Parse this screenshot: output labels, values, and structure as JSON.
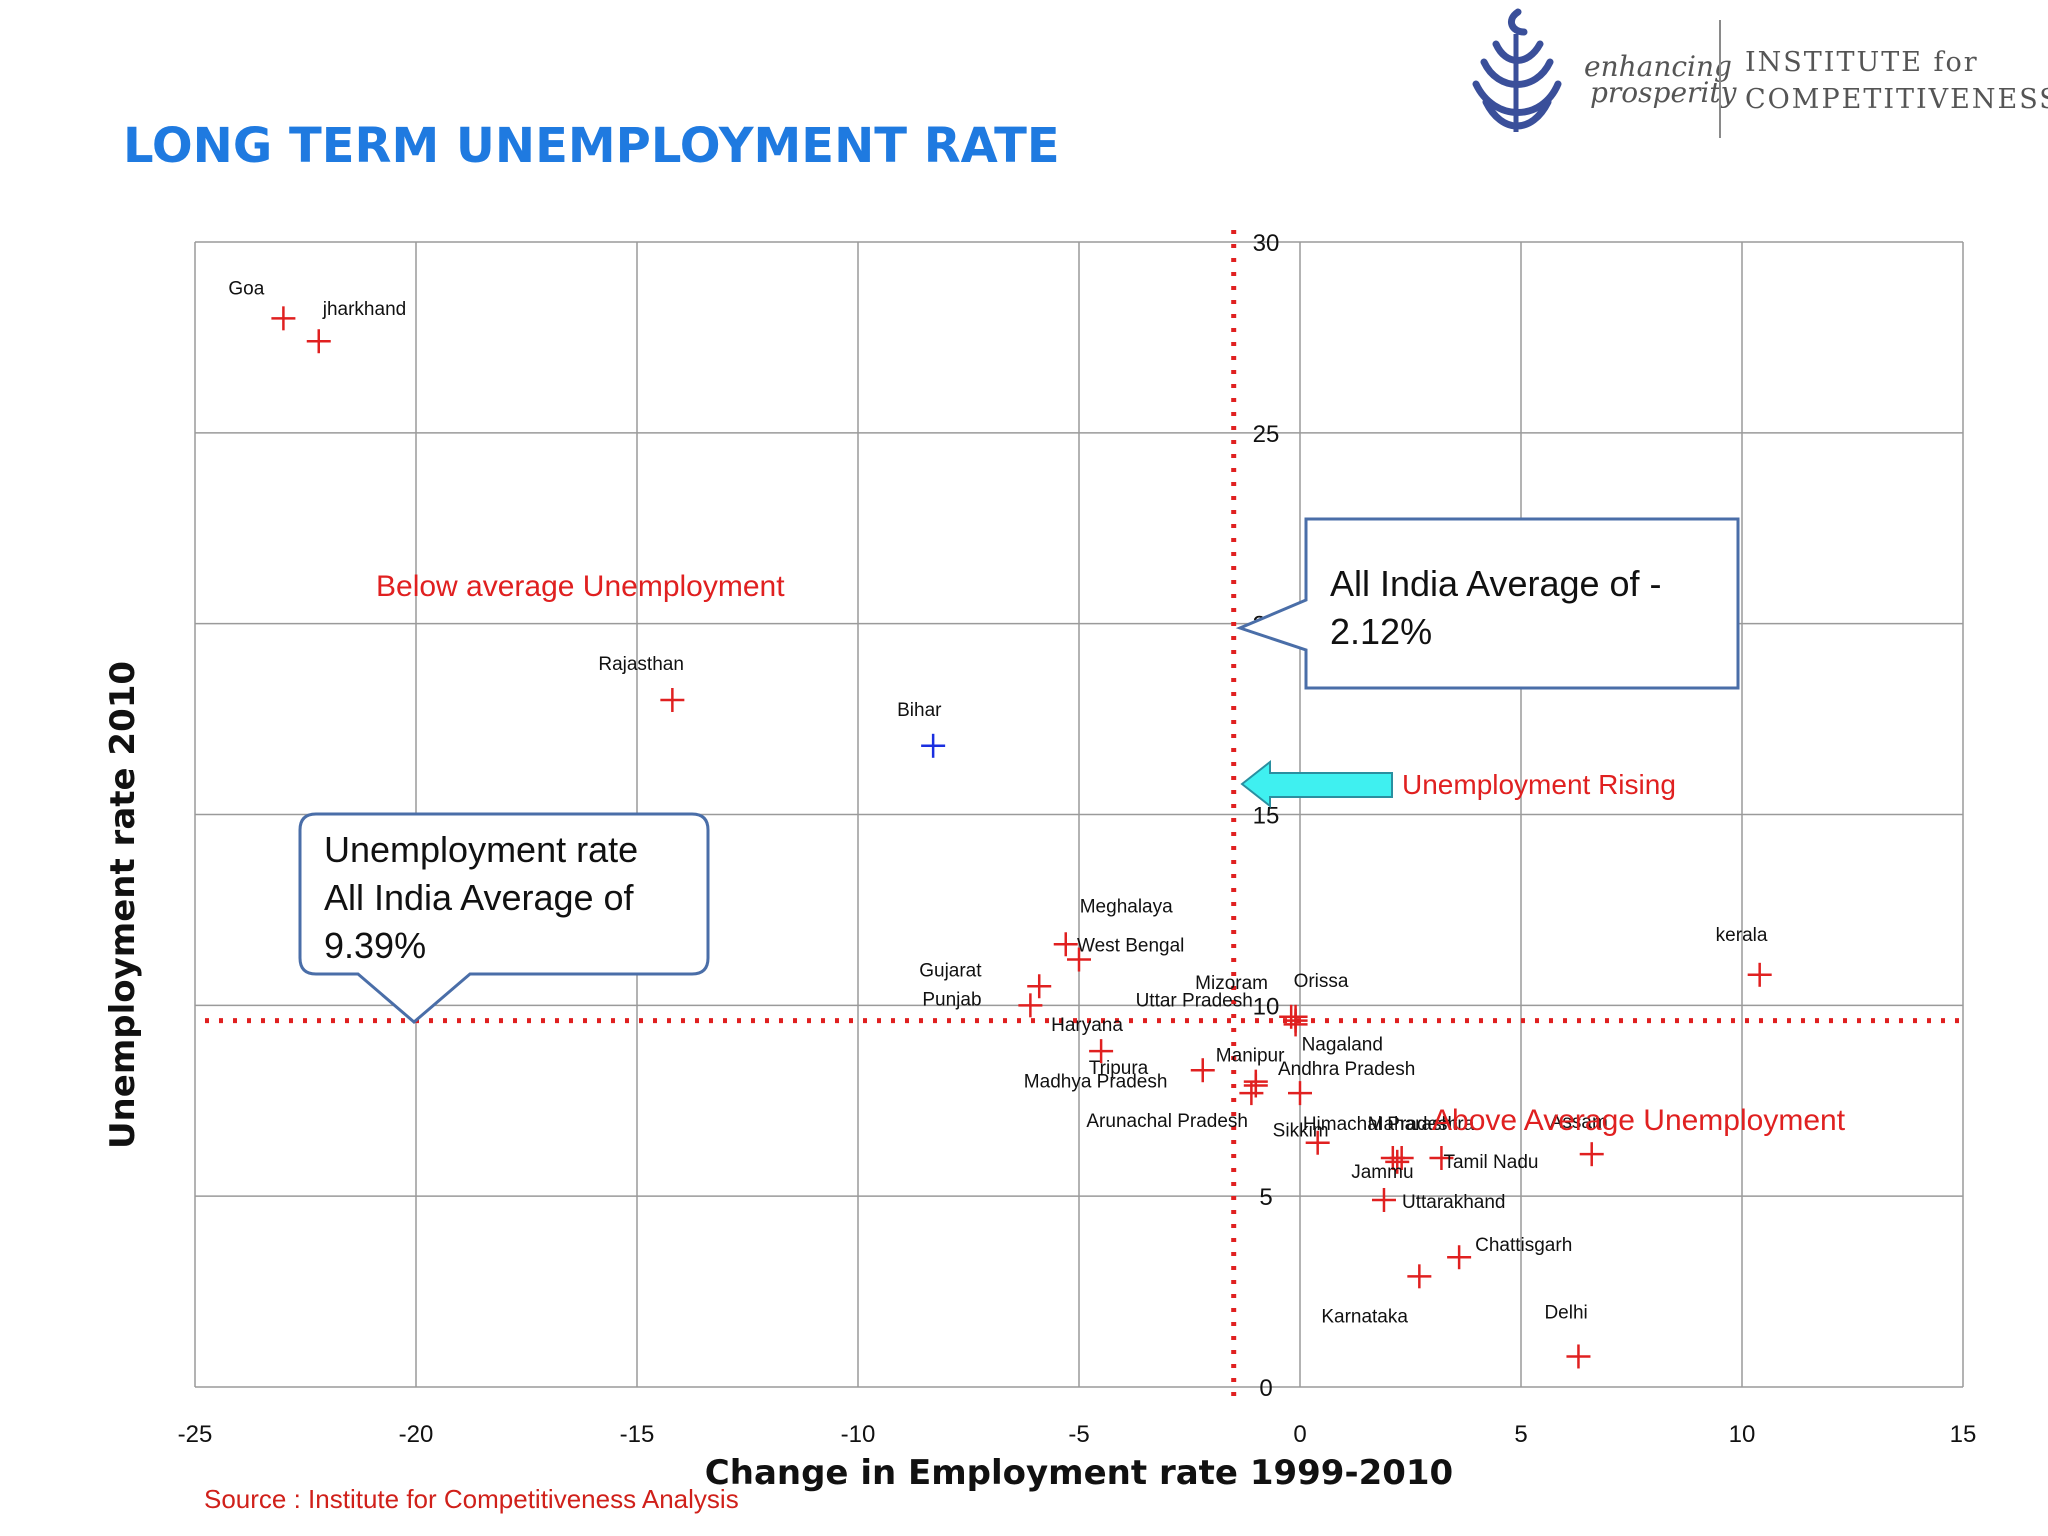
{
  "slide": {
    "title": "LONG TERM UNEMPLOYMENT RATE",
    "source": "Source : Institute for Competitiveness Analysis"
  },
  "logo": {
    "tagline_line1": "enhancing",
    "tagline_line2": "prosperity",
    "name_line1": "INSTITUTE for",
    "name_line2": "COMPETITIVENESS",
    "emblem_icon": "leaf-emblem-icon",
    "emblem_color": "#3a4f9a"
  },
  "annotations": {
    "below_average": "Below average Unemployment",
    "above_average": "Above Average Unemployment",
    "rising": "Unemployment Rising",
    "callout_change_line1": "All India Average of -",
    "callout_change_line2": "2.12%",
    "callout_unemp_line1": "Unemployment rate",
    "callout_unemp_line2": "All India Average of",
    "callout_unemp_line3": "9.39%",
    "arrow_icon": "left-arrow-icon",
    "arrow_color": "#3ff0f0",
    "annotation_color": "#e02020",
    "callout_border_color": "#4a6ea8"
  },
  "chart_data": {
    "type": "scatter",
    "xlabel": "Change in Employment rate 1999-2010",
    "ylabel": "Unemployment rate 2010",
    "xlim": [
      -25,
      15
    ],
    "ylim": [
      0,
      30
    ],
    "x_ticks": [
      -25,
      -20,
      -15,
      -10,
      -5,
      0,
      5,
      10,
      15
    ],
    "y_ticks": [
      0,
      5,
      10,
      15,
      20,
      25,
      30
    ],
    "x_tick_labels": [
      "-25",
      "-20",
      "-15",
      "-10",
      "-5",
      "0",
      "5",
      "10",
      "15"
    ],
    "y_tick_labels": [
      "0",
      "5",
      "10",
      "15",
      "20",
      "25",
      "30"
    ],
    "grid": true,
    "average_lines": {
      "x": -1.5,
      "y": 9.6
    },
    "marker": "plus",
    "colors": {
      "default": "#e02020",
      "highlight": "#1a2fe0",
      "axis_text": "#111111",
      "grid": "#9a9a9a",
      "average_line": "#e02020"
    },
    "points": [
      {
        "label": "Goa",
        "x": -23,
        "y": 28.0
      },
      {
        "label": "jharkhand",
        "x": -22.2,
        "y": 27.4
      },
      {
        "label": "Rajasthan",
        "x": -14.2,
        "y": 18.0
      },
      {
        "label": "Bihar",
        "x": -8.3,
        "y": 16.8,
        "highlight": true
      },
      {
        "label": "Meghalaya",
        "x": -5.3,
        "y": 11.6
      },
      {
        "label": "West Bengal",
        "x": -5.0,
        "y": 11.2
      },
      {
        "label": "Gujarat",
        "x": -5.9,
        "y": 10.5
      },
      {
        "label": "Punjab",
        "x": -6.1,
        "y": 10.0
      },
      {
        "label": "Haryana",
        "x": -4.5,
        "y": 8.8
      },
      {
        "label": "Tripura",
        "x": -2.2,
        "y": 8.3
      },
      {
        "label": "Madhya Pradesh",
        "x": -1.0,
        "y": 8.0
      },
      {
        "label": "Arunachal Pradesh",
        "x": -1.1,
        "y": 7.7
      },
      {
        "label": "Manipur",
        "x": -1.0,
        "y": 7.9
      },
      {
        "label": "Mizoram",
        "x": -0.2,
        "y": 9.7
      },
      {
        "label": "Uttar Pradesh",
        "x": -0.1,
        "y": 9.6
      },
      {
        "label": "Orissa",
        "x": -0.1,
        "y": 9.7
      },
      {
        "label": "Nagaland",
        "x": -0.1,
        "y": 9.5
      },
      {
        "label": "Andhra Pradesh",
        "x": 0.0,
        "y": 7.7
      },
      {
        "label": "Sikkim",
        "x": 0.4,
        "y": 6.4
      },
      {
        "label": "Himachal Pradesh",
        "x": 2.1,
        "y": 6.0
      },
      {
        "label": "Maharashtra",
        "x": 2.3,
        "y": 6.0
      },
      {
        "label": "Jammu",
        "x": 2.2,
        "y": 5.9
      },
      {
        "label": "Tamil Nadu",
        "x": 3.2,
        "y": 6.0
      },
      {
        "label": "Assam",
        "x": 6.6,
        "y": 6.1
      },
      {
        "label": "Uttarakhand",
        "x": 1.9,
        "y": 4.9
      },
      {
        "label": "Chattisgarh",
        "x": 3.6,
        "y": 3.4
      },
      {
        "label": "Karnataka",
        "x": 2.7,
        "y": 2.9
      },
      {
        "label": "Delhi",
        "x": 6.3,
        "y": 0.8
      },
      {
        "label": "kerala",
        "x": 10.4,
        "y": 10.8
      }
    ]
  }
}
